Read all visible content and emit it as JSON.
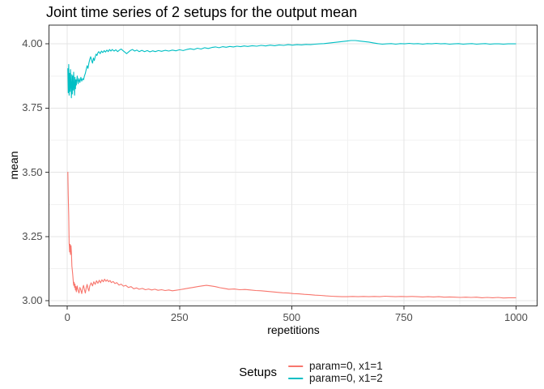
{
  "title": "Joint time series of 2 setups for the output mean",
  "legend": {
    "title": "Setups"
  },
  "style": {
    "background": "#FFFFFF",
    "grid_major": "#E4E4E4",
    "grid_minor": "#F1F1F1",
    "panel_border": "#333333",
    "tick_mark_color": "#333333",
    "tick_label_color": "#4D4D4D",
    "text_color": "#000000"
  },
  "chart_data": {
    "type": "line",
    "title": "Joint time series of 2 setups for the output mean",
    "xlabel": "repetitions",
    "ylabel": "mean",
    "xlim": [
      -41,
      1047
    ],
    "ylim": [
      2.98,
      4.073
    ],
    "grid": true,
    "legend_position": "bottom",
    "x_ticks": {
      "values": [
        0,
        250,
        500,
        750,
        1000
      ],
      "labels": [
        "0",
        "250",
        "500",
        "750",
        "1000"
      ]
    },
    "y_ticks": {
      "values": [
        3.0,
        3.25,
        3.5,
        3.75,
        4.0
      ],
      "labels": [
        "3.00",
        "3.25",
        "3.50",
        "3.75",
        "4.00"
      ]
    },
    "x_minor": [
      125,
      375,
      625,
      875
    ],
    "y_minor": [
      3.125,
      3.375,
      3.625,
      3.875
    ],
    "series": [
      {
        "name": "param=0, x1=1",
        "color": "#F8766D",
        "points": [
          [
            1,
            3.502
          ],
          [
            2,
            3.41
          ],
          [
            3,
            3.33
          ],
          [
            4,
            3.225
          ],
          [
            5,
            3.19
          ],
          [
            6,
            3.22
          ],
          [
            7,
            3.18
          ],
          [
            8,
            3.215
          ],
          [
            9,
            3.19
          ],
          [
            10,
            3.135
          ],
          [
            11,
            3.12
          ],
          [
            12,
            3.1
          ],
          [
            13,
            3.08
          ],
          [
            14,
            3.06
          ],
          [
            15,
            3.072
          ],
          [
            16,
            3.052
          ],
          [
            17,
            3.065
          ],
          [
            18,
            3.042
          ],
          [
            19,
            3.056
          ],
          [
            20,
            3.035
          ],
          [
            22,
            3.058
          ],
          [
            24,
            3.04
          ],
          [
            26,
            3.03
          ],
          [
            28,
            3.052
          ],
          [
            30,
            3.042
          ],
          [
            32,
            3.028
          ],
          [
            34,
            3.048
          ],
          [
            36,
            3.06
          ],
          [
            38,
            3.044
          ],
          [
            40,
            3.03
          ],
          [
            42,
            3.05
          ],
          [
            44,
            3.064
          ],
          [
            46,
            3.048
          ],
          [
            48,
            3.038
          ],
          [
            50,
            3.058
          ],
          [
            53,
            3.07
          ],
          [
            56,
            3.058
          ],
          [
            59,
            3.074
          ],
          [
            62,
            3.064
          ],
          [
            65,
            3.078
          ],
          [
            68,
            3.068
          ],
          [
            71,
            3.08
          ],
          [
            74,
            3.07
          ],
          [
            77,
            3.082
          ],
          [
            80,
            3.074
          ],
          [
            83,
            3.084
          ],
          [
            86,
            3.076
          ],
          [
            89,
            3.082
          ],
          [
            92,
            3.074
          ],
          [
            95,
            3.079
          ],
          [
            98,
            3.071
          ],
          [
            102,
            3.075
          ],
          [
            106,
            3.067
          ],
          [
            110,
            3.071
          ],
          [
            115,
            3.061
          ],
          [
            120,
            3.065
          ],
          [
            125,
            3.057
          ],
          [
            130,
            3.06
          ],
          [
            136,
            3.052
          ],
          [
            142,
            3.055
          ],
          [
            148,
            3.047
          ],
          [
            154,
            3.05
          ],
          [
            160,
            3.045
          ],
          [
            167,
            3.048
          ],
          [
            174,
            3.043
          ],
          [
            181,
            3.046
          ],
          [
            188,
            3.042
          ],
          [
            195,
            3.045
          ],
          [
            202,
            3.041
          ],
          [
            210,
            3.043
          ],
          [
            218,
            3.04
          ],
          [
            226,
            3.042
          ],
          [
            234,
            3.039
          ],
          [
            242,
            3.041
          ],
          [
            250,
            3.043
          ],
          [
            260,
            3.046
          ],
          [
            270,
            3.049
          ],
          [
            280,
            3.052
          ],
          [
            290,
            3.055
          ],
          [
            300,
            3.058
          ],
          [
            310,
            3.06
          ],
          [
            320,
            3.058
          ],
          [
            330,
            3.055
          ],
          [
            340,
            3.051
          ],
          [
            350,
            3.048
          ],
          [
            360,
            3.045
          ],
          [
            372,
            3.046
          ],
          [
            384,
            3.043
          ],
          [
            396,
            3.044
          ],
          [
            408,
            3.042
          ],
          [
            420,
            3.04
          ],
          [
            432,
            3.039
          ],
          [
            444,
            3.037
          ],
          [
            456,
            3.035
          ],
          [
            468,
            3.033
          ],
          [
            480,
            3.031
          ],
          [
            492,
            3.03
          ],
          [
            504,
            3.028
          ],
          [
            516,
            3.027
          ],
          [
            528,
            3.025
          ],
          [
            540,
            3.024
          ],
          [
            552,
            3.022
          ],
          [
            564,
            3.021
          ],
          [
            576,
            3.019
          ],
          [
            588,
            3.018
          ],
          [
            600,
            3.017
          ],
          [
            612,
            3.016
          ],
          [
            624,
            3.016
          ],
          [
            636,
            3.017
          ],
          [
            648,
            3.016
          ],
          [
            660,
            3.017
          ],
          [
            672,
            3.016
          ],
          [
            684,
            3.017
          ],
          [
            696,
            3.016
          ],
          [
            708,
            3.018
          ],
          [
            720,
            3.017
          ],
          [
            732,
            3.016
          ],
          [
            744,
            3.017
          ],
          [
            756,
            3.016
          ],
          [
            768,
            3.017
          ],
          [
            780,
            3.016
          ],
          [
            792,
            3.015
          ],
          [
            804,
            3.016
          ],
          [
            816,
            3.015
          ],
          [
            828,
            3.016
          ],
          [
            840,
            3.014
          ],
          [
            852,
            3.015
          ],
          [
            864,
            3.014
          ],
          [
            876,
            3.013
          ],
          [
            888,
            3.014
          ],
          [
            900,
            3.013
          ],
          [
            912,
            3.014
          ],
          [
            924,
            3.012
          ],
          [
            936,
            3.013
          ],
          [
            948,
            3.012
          ],
          [
            960,
            3.013
          ],
          [
            972,
            3.011
          ],
          [
            984,
            3.012
          ],
          [
            1000,
            3.012
          ]
        ]
      },
      {
        "name": "param=0, x1=2",
        "color": "#00BFC4",
        "points": [
          [
            1,
            3.905
          ],
          [
            2,
            3.81
          ],
          [
            3,
            3.92
          ],
          [
            4,
            3.8
          ],
          [
            5,
            3.885
          ],
          [
            6,
            3.815
          ],
          [
            7,
            3.9
          ],
          [
            8,
            3.83
          ],
          [
            9,
            3.79
          ],
          [
            10,
            3.88
          ],
          [
            11,
            3.805
          ],
          [
            12,
            3.875
          ],
          [
            13,
            3.82
          ],
          [
            14,
            3.89
          ],
          [
            15,
            3.835
          ],
          [
            16,
            3.8
          ],
          [
            17,
            3.87
          ],
          [
            18,
            3.825
          ],
          [
            19,
            3.86
          ],
          [
            20,
            3.84
          ],
          [
            22,
            3.875
          ],
          [
            24,
            3.845
          ],
          [
            26,
            3.865
          ],
          [
            28,
            3.85
          ],
          [
            30,
            3.87
          ],
          [
            32,
            3.855
          ],
          [
            34,
            3.865
          ],
          [
            36,
            3.86
          ],
          [
            38,
            3.875
          ],
          [
            40,
            3.885
          ],
          [
            42,
            3.9
          ],
          [
            44,
            3.915
          ],
          [
            46,
            3.905
          ],
          [
            48,
            3.925
          ],
          [
            50,
            3.94
          ],
          [
            52,
            3.95
          ],
          [
            54,
            3.935
          ],
          [
            56,
            3.925
          ],
          [
            58,
            3.945
          ],
          [
            60,
            3.935
          ],
          [
            62,
            3.95
          ],
          [
            64,
            3.96
          ],
          [
            66,
            3.955
          ],
          [
            68,
            3.965
          ],
          [
            70,
            3.97
          ],
          [
            73,
            3.962
          ],
          [
            76,
            3.972
          ],
          [
            79,
            3.966
          ],
          [
            82,
            3.974
          ],
          [
            85,
            3.968
          ],
          [
            88,
            3.976
          ],
          [
            91,
            3.97
          ],
          [
            94,
            3.978
          ],
          [
            97,
            3.972
          ],
          [
            100,
            3.978
          ],
          [
            104,
            3.972
          ],
          [
            108,
            3.977
          ],
          [
            112,
            3.97
          ],
          [
            116,
            3.976
          ],
          [
            120,
            3.98
          ],
          [
            124,
            3.974
          ],
          [
            128,
            3.968
          ],
          [
            132,
            3.962
          ],
          [
            136,
            3.968
          ],
          [
            140,
            3.974
          ],
          [
            145,
            3.978
          ],
          [
            150,
            3.972
          ],
          [
            155,
            3.976
          ],
          [
            160,
            3.97
          ],
          [
            166,
            3.975
          ],
          [
            172,
            3.97
          ],
          [
            178,
            3.974
          ],
          [
            184,
            3.969
          ],
          [
            190,
            3.973
          ],
          [
            196,
            3.97
          ],
          [
            203,
            3.974
          ],
          [
            210,
            3.971
          ],
          [
            218,
            3.975
          ],
          [
            226,
            3.972
          ],
          [
            234,
            3.976
          ],
          [
            242,
            3.973
          ],
          [
            250,
            3.977
          ],
          [
            258,
            3.974
          ],
          [
            266,
            3.978
          ],
          [
            274,
            3.981
          ],
          [
            282,
            3.978
          ],
          [
            290,
            3.983
          ],
          [
            298,
            3.98
          ],
          [
            306,
            3.985
          ],
          [
            314,
            3.982
          ],
          [
            322,
            3.986
          ],
          [
            330,
            3.988
          ],
          [
            338,
            3.985
          ],
          [
            346,
            3.989
          ],
          [
            354,
            3.987
          ],
          [
            362,
            3.99
          ],
          [
            370,
            3.988
          ],
          [
            378,
            3.991
          ],
          [
            386,
            3.989
          ],
          [
            394,
            3.992
          ],
          [
            402,
            3.99
          ],
          [
            412,
            3.993
          ],
          [
            422,
            3.991
          ],
          [
            432,
            3.994
          ],
          [
            442,
            3.992
          ],
          [
            452,
            3.995
          ],
          [
            462,
            3.993
          ],
          [
            472,
            3.996
          ],
          [
            482,
            3.994
          ],
          [
            492,
            3.997
          ],
          [
            502,
            3.995
          ],
          [
            512,
            3.997
          ],
          [
            522,
            3.996
          ],
          [
            532,
            3.998
          ],
          [
            542,
            3.997
          ],
          [
            552,
            3.999
          ],
          [
            562,
            4.0
          ],
          [
            572,
            4.001
          ],
          [
            582,
            4.003
          ],
          [
            592,
            4.005
          ],
          [
            602,
            4.007
          ],
          [
            612,
            4.009
          ],
          [
            622,
            4.011
          ],
          [
            632,
            4.013
          ],
          [
            642,
            4.013
          ],
          [
            652,
            4.011
          ],
          [
            662,
            4.009
          ],
          [
            672,
            4.007
          ],
          [
            682,
            4.004
          ],
          [
            692,
            4.001
          ],
          [
            702,
            3.999
          ],
          [
            712,
            4.0
          ],
          [
            722,
            4.001
          ],
          [
            732,
            3.999
          ],
          [
            742,
            4.001
          ],
          [
            752,
            4.0
          ],
          [
            762,
            4.002
          ],
          [
            772,
            4.0
          ],
          [
            782,
            4.001
          ],
          [
            792,
            3.999
          ],
          [
            802,
            4.001
          ],
          [
            812,
            4.0
          ],
          [
            822,
            4.002
          ],
          [
            832,
            4.0
          ],
          [
            842,
            4.001
          ],
          [
            852,
            3.999
          ],
          [
            862,
            4.0
          ],
          [
            872,
            4.001
          ],
          [
            882,
            3.999
          ],
          [
            892,
            4.0
          ],
          [
            902,
            4.001
          ],
          [
            912,
            3.999
          ],
          [
            922,
            4.0
          ],
          [
            932,
            4.001
          ],
          [
            942,
            3.999
          ],
          [
            952,
            4.0
          ],
          [
            962,
            4.0
          ],
          [
            972,
            3.999
          ],
          [
            982,
            4.0
          ],
          [
            1000,
            4.0
          ]
        ]
      }
    ]
  }
}
